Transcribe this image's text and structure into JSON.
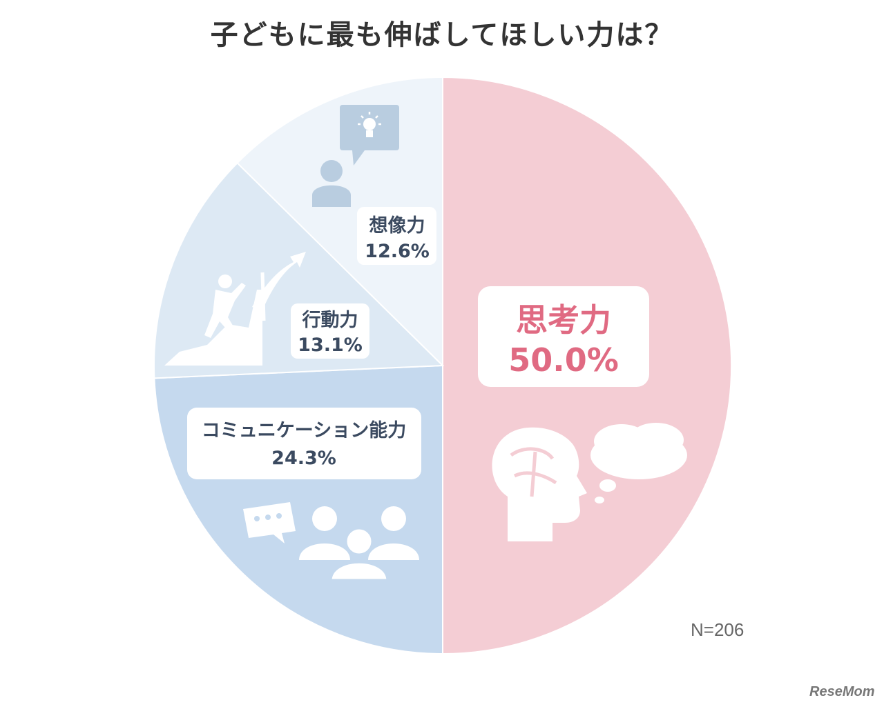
{
  "title": "子どもに最も伸ばしてほしい力は？",
  "note": "N=206",
  "brand": "ReseMom",
  "chart_data": {
    "type": "pie",
    "title": "子どもに最も伸ばしてほしい力は？",
    "start_angle_deg": 0,
    "direction": "clockwise",
    "slices": [
      {
        "label": "思考力",
        "value": 50.0,
        "value_label": "50.0%",
        "color": "#f4cdd4",
        "text_color": "#e06a82",
        "icon": "brain-thought-icon"
      },
      {
        "label": "コミュニケーション能力",
        "value": 24.3,
        "value_label": "24.3%",
        "color": "#c5d9ee",
        "text_color": "#3b4a60",
        "icon": "group-chat-icon"
      },
      {
        "label": "行動力",
        "value": 13.1,
        "value_label": "13.1%",
        "color": "#dde9f4",
        "text_color": "#3b4a60",
        "icon": "climber-arrow-icon"
      },
      {
        "label": "想像力",
        "value": 12.6,
        "value_label": "12.6%",
        "color": "#eef4fa",
        "text_color": "#3b4a60",
        "icon": "person-idea-icon"
      }
    ]
  }
}
